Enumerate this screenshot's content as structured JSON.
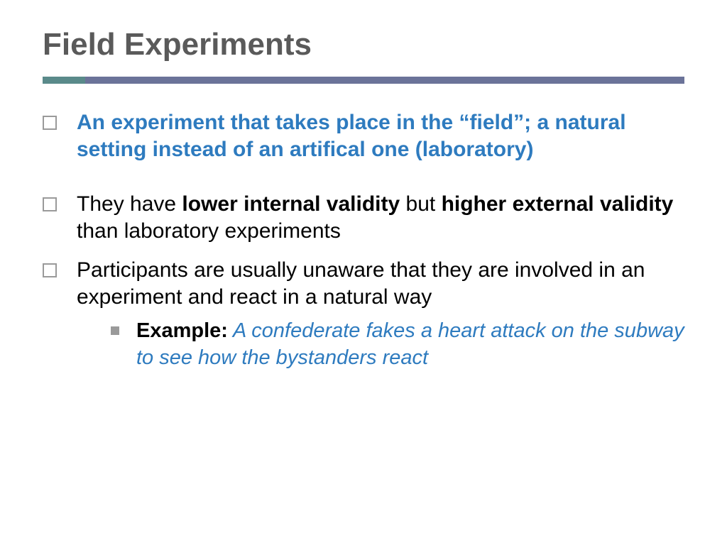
{
  "title": "Field Experiments",
  "colors": {
    "title_text": "#5a5a5a",
    "divider_accent": "#5a8a8a",
    "divider_main": "#6b7399",
    "highlight": "#2e7bbf",
    "body_text": "#000000",
    "bullet_border": "#9a9a9a",
    "background": "#ffffff"
  },
  "typography": {
    "title_fontsize": 44,
    "body_fontsize": 30,
    "sub_fontsize": 29,
    "font_family": "Arial"
  },
  "bullets": [
    {
      "type": "highlight",
      "text": "An experiment that takes place in the “field”; a natural setting instead of an artifical one (laboratory)"
    },
    {
      "type": "mixed",
      "pre": "They have ",
      "bold1": "lower internal validity",
      "mid": " but ",
      "bold2": "higher external validity",
      "post": " than laboratory experiments"
    },
    {
      "type": "plain",
      "text": "Participants are usually unaware that they are involved in an experiment and react in a natural way"
    }
  ],
  "sub_bullet": {
    "label": "Example:",
    "text": " A confederate fakes a heart attack on the subway to see how the bystanders react"
  }
}
